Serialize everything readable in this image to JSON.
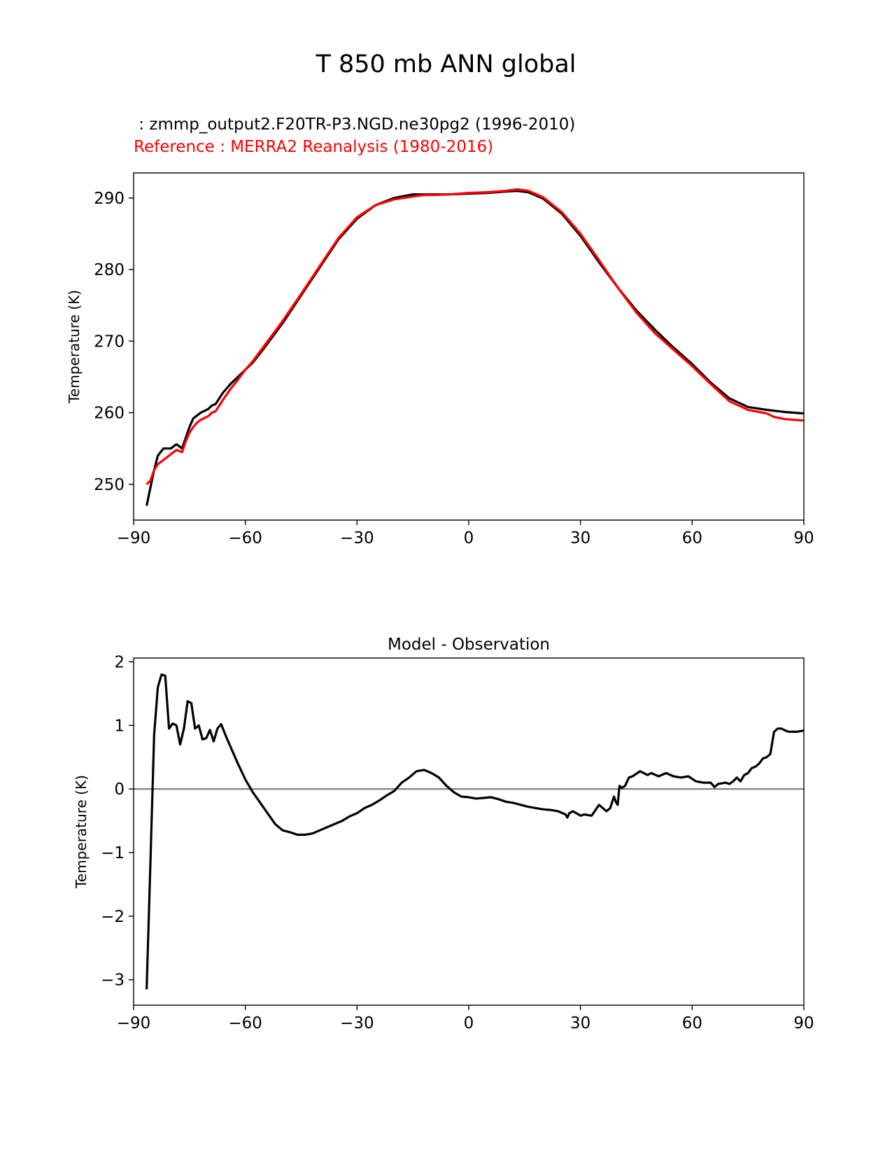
{
  "figure": {
    "suptitle": "T 850 mb ANN global",
    "test_label": " : zmmp_output2.F20TR-P3.NGD.ne30pg2 (1996-2010)",
    "ref_label": "Reference : MERRA2 Reanalysis (1980-2016)"
  },
  "colors": {
    "test": "#000000",
    "reference": "#ff0000",
    "zero_line": "#808080",
    "axes": "#000000"
  },
  "chart_data": [
    {
      "type": "line",
      "title": "",
      "xlabel": "",
      "ylabel": "Temperature (K)",
      "xlim": [
        -90,
        90
      ],
      "ylim": [
        245,
        293.5
      ],
      "xticks": [
        -90,
        -60,
        -30,
        0,
        30,
        60,
        90
      ],
      "xtick_labels": [
        "−90",
        "−60",
        "−30",
        "0",
        "30",
        "60",
        "90"
      ],
      "yticks": [
        250,
        260,
        270,
        280,
        290
      ],
      "ytick_labels": [
        "250",
        "260",
        "270",
        "280",
        "290"
      ],
      "series": [
        {
          "name": "test",
          "color": "#000000",
          "x": [
            -86.5,
            -85.5,
            -84.5,
            -83.5,
            -82,
            -80,
            -78.5,
            -77,
            -76,
            -75,
            -74,
            -73,
            -72,
            -70,
            -69,
            -68,
            -66,
            -64,
            -62,
            -60,
            -58,
            -55,
            -50,
            -45,
            -40,
            -35,
            -30,
            -25,
            -20,
            -15,
            -12,
            -10,
            -5,
            0,
            5,
            10,
            13,
            16,
            20,
            25,
            30,
            35,
            40,
            45,
            50,
            55,
            60,
            65,
            70,
            75,
            80,
            85,
            90
          ],
          "y": [
            247,
            249.5,
            252,
            254,
            255,
            255,
            255.6,
            255,
            256.5,
            258,
            259.2,
            259.6,
            260,
            260.5,
            261,
            261.2,
            262.8,
            264,
            265,
            266,
            267,
            269,
            272.5,
            276.4,
            280.3,
            284.2,
            287.1,
            289,
            290,
            290.5,
            290.5,
            290.5,
            290.5,
            290.6,
            290.7,
            290.9,
            291,
            290.8,
            289.9,
            287.8,
            284.7,
            281,
            277.5,
            274.3,
            271.6,
            269.1,
            266.8,
            264.2,
            262,
            260.8,
            260.4,
            260.1,
            259.9
          ]
        },
        {
          "name": "reference",
          "color": "#ff0000",
          "x": [
            -86.5,
            -85.5,
            -84.5,
            -83.5,
            -82,
            -80,
            -78.5,
            -77,
            -76,
            -75,
            -74,
            -73,
            -72,
            -70,
            -69,
            -68,
            -66,
            -64,
            -62,
            -60,
            -58,
            -55,
            -50,
            -45,
            -40,
            -35,
            -30,
            -25,
            -20,
            -15,
            -12,
            -10,
            -5,
            0,
            5,
            10,
            13,
            16,
            20,
            25,
            30,
            35,
            40,
            45,
            50,
            55,
            60,
            65,
            70,
            75,
            80,
            82,
            85,
            90
          ],
          "y": [
            250,
            250.5,
            252,
            252.8,
            253.4,
            254.2,
            254.8,
            254.5,
            256,
            257.2,
            258,
            258.6,
            259,
            259.5,
            260,
            260.2,
            261.8,
            263.3,
            264.6,
            266,
            267.2,
            269.3,
            272.8,
            276.6,
            280.5,
            284.4,
            287.3,
            289,
            289.8,
            290.2,
            290.4,
            290.4,
            290.5,
            290.7,
            290.8,
            291,
            291.2,
            291,
            290.1,
            288,
            285,
            281.3,
            277.5,
            274,
            271.1,
            268.8,
            266.5,
            264,
            261.6,
            260.4,
            259.9,
            259.4,
            259.1,
            258.9
          ]
        }
      ]
    },
    {
      "type": "line",
      "title": "Model - Observation",
      "xlabel": "",
      "ylabel": "Temperature (K)",
      "xlim": [
        -90,
        90
      ],
      "ylim": [
        -3.4,
        2.06
      ],
      "xticks": [
        -90,
        -60,
        -30,
        0,
        30,
        60,
        90
      ],
      "xtick_labels": [
        "−90",
        "−60",
        "−30",
        "0",
        "30",
        "60",
        "90"
      ],
      "yticks": [
        -3,
        -2,
        -1,
        0,
        1,
        2
      ],
      "ytick_labels": [
        "−3",
        "−2",
        "−1",
        "0",
        "1",
        "2"
      ],
      "reference_line": 0,
      "series": [
        {
          "name": "difference",
          "color": "#000000",
          "x": [
            -86.5,
            -85.5,
            -84.5,
            -83.5,
            -82.5,
            -81.5,
            -80.5,
            -79.5,
            -78.5,
            -77.5,
            -76.5,
            -75.5,
            -74.5,
            -73.5,
            -72.5,
            -71.5,
            -70.5,
            -69.5,
            -68.5,
            -67.5,
            -66.5,
            -65,
            -62,
            -60,
            -58,
            -55,
            -52,
            -50,
            -48,
            -46,
            -44,
            -42,
            -40,
            -38,
            -36,
            -34,
            -32,
            -30,
            -28,
            -26,
            -24,
            -22,
            -20,
            -18,
            -16,
            -14,
            -12,
            -10,
            -8,
            -6,
            -4,
            -2,
            0,
            2,
            4,
            6,
            8,
            10,
            12,
            14,
            16,
            18,
            20,
            22,
            24,
            26,
            26.5,
            27,
            28,
            30,
            31,
            33,
            35,
            36,
            37,
            38,
            39,
            39.5,
            40,
            40.5,
            41,
            41.5,
            42,
            43,
            44,
            46,
            48,
            49,
            51,
            53,
            55,
            57,
            59,
            61,
            63,
            65,
            66,
            67,
            69,
            70,
            71,
            72,
            73,
            74,
            75,
            76,
            77,
            78,
            79,
            80,
            81,
            82,
            83,
            84,
            85,
            86,
            88,
            90
          ],
          "y": [
            -3.15,
            -1.2,
            0.85,
            1.6,
            1.8,
            1.78,
            0.95,
            1.03,
            1.0,
            0.7,
            0.95,
            1.38,
            1.35,
            0.95,
            1.0,
            0.78,
            0.8,
            0.93,
            0.75,
            0.95,
            1.02,
            0.8,
            0.4,
            0.15,
            -0.05,
            -0.3,
            -0.55,
            -0.65,
            -0.68,
            -0.72,
            -0.72,
            -0.7,
            -0.65,
            -0.6,
            -0.55,
            -0.5,
            -0.43,
            -0.38,
            -0.3,
            -0.25,
            -0.18,
            -0.1,
            -0.03,
            0.1,
            0.18,
            0.28,
            0.3,
            0.25,
            0.18,
            0.05,
            -0.05,
            -0.12,
            -0.13,
            -0.15,
            -0.14,
            -0.13,
            -0.16,
            -0.2,
            -0.22,
            -0.25,
            -0.28,
            -0.3,
            -0.32,
            -0.33,
            -0.35,
            -0.4,
            -0.45,
            -0.38,
            -0.35,
            -0.42,
            -0.4,
            -0.42,
            -0.25,
            -0.3,
            -0.35,
            -0.3,
            -0.12,
            -0.2,
            -0.25,
            0.05,
            0.02,
            0.03,
            0.05,
            0.18,
            0.2,
            0.28,
            0.22,
            0.25,
            0.2,
            0.25,
            0.2,
            0.18,
            0.2,
            0.12,
            0.1,
            0.1,
            0.03,
            0.08,
            0.1,
            0.08,
            0.12,
            0.18,
            0.12,
            0.22,
            0.25,
            0.33,
            0.35,
            0.4,
            0.48,
            0.5,
            0.55,
            0.9,
            0.95,
            0.95,
            0.92,
            0.9,
            0.9,
            0.92
          ]
        }
      ]
    }
  ]
}
